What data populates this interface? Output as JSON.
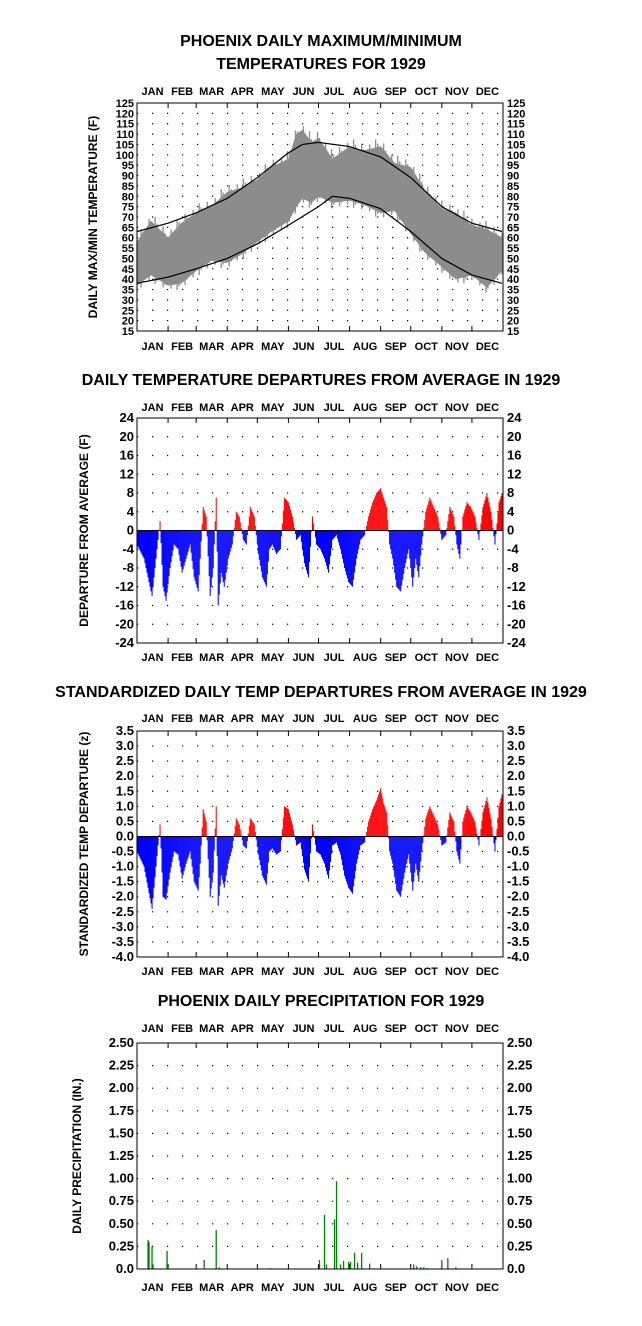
{
  "chart_data": [
    {
      "type": "area",
      "title": "PHOENIX DAILY MAXIMUM/MINIMUM",
      "subtitle": "TEMPERATURES FOR 1929",
      "xlabel": "",
      "ylabel": "DAILY MAX/MIN TEMPERATURE (F)",
      "ylim": [
        15,
        125
      ],
      "yticks": [
        "15",
        "20",
        "25",
        "30",
        "35",
        "40",
        "45",
        "50",
        "55",
        "60",
        "65",
        "70",
        "75",
        "80",
        "85",
        "90",
        "95",
        "100",
        "105",
        "110",
        "115",
        "120",
        "125"
      ],
      "months": [
        "JAN",
        "FEB",
        "MAR",
        "APR",
        "MAY",
        "JUN",
        "JUL",
        "AUG",
        "SEP",
        "OCT",
        "NOV",
        "DEC"
      ],
      "grid": true,
      "colors": {
        "band": "#8c8c8c",
        "normals": "#000000"
      },
      "series": [
        {
          "kind": "band",
          "x": [
            1,
            15,
            32,
            45,
            60,
            75,
            91,
            105,
            121,
            135,
            152,
            160,
            166,
            175,
            182,
            196,
            213,
            227,
            244,
            258,
            274,
            288,
            305,
            319,
            335,
            350,
            365
          ],
          "low": [
            37,
            42,
            37,
            38,
            44,
            49,
            48,
            52,
            58,
            63,
            68,
            75,
            79,
            77,
            80,
            77,
            78,
            76,
            72,
            73,
            62,
            53,
            46,
            40,
            42,
            36,
            44
          ],
          "high": [
            58,
            68,
            60,
            67,
            72,
            75,
            82,
            84,
            88,
            94,
            98,
            110,
            112,
            106,
            108,
            98,
            104,
            102,
            104,
            96,
            94,
            83,
            74,
            72,
            66,
            64,
            60
          ]
        },
        {
          "kind": "line",
          "x": [
            1,
            32,
            60,
            91,
            121,
            152,
            166,
            182,
            213,
            244,
            274,
            305,
            335,
            365
          ],
          "values": [
            63,
            67,
            72,
            79,
            89,
            101,
            105,
            106,
            104,
            99,
            89,
            75,
            67,
            63
          ]
        },
        {
          "kind": "line",
          "x": [
            1,
            32,
            60,
            91,
            121,
            152,
            182,
            196,
            213,
            244,
            274,
            305,
            335,
            365
          ],
          "values": [
            38,
            41,
            45,
            50,
            57,
            66,
            75,
            80,
            79,
            74,
            63,
            50,
            42,
            38
          ]
        }
      ]
    },
    {
      "type": "bar",
      "title": "DAILY TEMPERATURE DEPARTURES FROM AVERAGE IN 1929",
      "xlabel": "",
      "ylabel": "DEPARTURE FROM AVERAGE (F)",
      "ylim": [
        -24,
        24
      ],
      "yticks": [
        "-24",
        "-20",
        "-16",
        "-12",
        "-8",
        "-4",
        "0",
        "4",
        "8",
        "12",
        "16",
        "20",
        "24"
      ],
      "months": [
        "JAN",
        "FEB",
        "MAR",
        "APR",
        "MAY",
        "JUN",
        "JUL",
        "AUG",
        "SEP",
        "OCT",
        "NOV",
        "DEC"
      ],
      "grid": true,
      "colors": {
        "positive": "#ff0000",
        "negative": "#0000ff"
      },
      "x": [
        1,
        8,
        12,
        16,
        20,
        24,
        27,
        30,
        34,
        38,
        42,
        46,
        50,
        54,
        58,
        62,
        64,
        67,
        70,
        74,
        77,
        80,
        82,
        85,
        88,
        92,
        96,
        100,
        103,
        107,
        110,
        114,
        118,
        122,
        126,
        130,
        133,
        136,
        140,
        144,
        148,
        152,
        156,
        160,
        164,
        168,
        172,
        176,
        180,
        184,
        188,
        192,
        196,
        200,
        204,
        208,
        212,
        216,
        220,
        224,
        228,
        232,
        236,
        240,
        244,
        247,
        250,
        253,
        256,
        260,
        264,
        268,
        272,
        276,
        279,
        282,
        285,
        289,
        293,
        297,
        301,
        305,
        309,
        313,
        317,
        320,
        323,
        326,
        330,
        334,
        338,
        342,
        346,
        350,
        354,
        358,
        362,
        365
      ],
      "values": [
        -3,
        -6,
        -10,
        -14,
        -6,
        2,
        -12,
        -15,
        -8,
        -3,
        -4,
        -9,
        -6,
        -3,
        -10,
        -13,
        -6,
        5,
        3,
        -14,
        -8,
        7,
        -16,
        -9,
        -12,
        -6,
        -3,
        4,
        3,
        -2,
        -3,
        5,
        3,
        -5,
        -10,
        -12,
        -4,
        -3,
        -5,
        -4,
        7,
        6,
        3,
        -2,
        -1,
        -7,
        -10,
        3,
        -3,
        -4,
        -6,
        -9,
        -2,
        -1,
        -4,
        -8,
        -11,
        -12,
        -6,
        -2,
        -1,
        3,
        6,
        8,
        9,
        7,
        5,
        -3,
        -6,
        -12,
        -13,
        -8,
        -4,
        -12,
        -6,
        -10,
        -3,
        4,
        7,
        5,
        3,
        -2,
        -1,
        5,
        3,
        -3,
        -6,
        3,
        6,
        5,
        3,
        -2,
        5,
        8,
        4,
        -3,
        6,
        8
      ]
    },
    {
      "type": "bar",
      "title": "STANDARDIZED DAILY TEMP DEPARTURES FROM AVERAGE IN 1929",
      "xlabel": "",
      "ylabel": "STANDARDIZED TEMP DEPARTURE (z)",
      "ylim": [
        -4.0,
        3.5
      ],
      "yticks": [
        "-4.0",
        "-3.5",
        "-3.0",
        "-2.5",
        "-2.0",
        "-1.5",
        "-1.0",
        "-0.5",
        "0.0",
        "0.5",
        "1.0",
        "1.5",
        "2.0",
        "2.5",
        "3.0",
        "3.5"
      ],
      "months": [
        "JAN",
        "FEB",
        "MAR",
        "APR",
        "MAY",
        "JUN",
        "JUL",
        "AUG",
        "SEP",
        "OCT",
        "NOV",
        "DEC"
      ],
      "grid": true,
      "colors": {
        "positive": "#ff0000",
        "negative": "#0000ff"
      },
      "x": [
        1,
        8,
        12,
        16,
        20,
        24,
        27,
        30,
        34,
        38,
        42,
        46,
        50,
        54,
        58,
        62,
        64,
        67,
        70,
        74,
        77,
        80,
        82,
        85,
        88,
        92,
        96,
        100,
        103,
        107,
        110,
        114,
        118,
        122,
        126,
        130,
        133,
        136,
        140,
        144,
        148,
        152,
        156,
        160,
        164,
        168,
        172,
        176,
        180,
        184,
        188,
        192,
        196,
        200,
        204,
        208,
        212,
        216,
        220,
        224,
        228,
        232,
        236,
        240,
        244,
        247,
        250,
        253,
        256,
        260,
        264,
        268,
        272,
        276,
        279,
        282,
        285,
        289,
        293,
        297,
        301,
        305,
        309,
        313,
        317,
        320,
        323,
        326,
        330,
        334,
        338,
        342,
        346,
        350,
        354,
        358,
        362,
        365
      ],
      "values": [
        -0.5,
        -1.0,
        -1.7,
        -2.4,
        -1.0,
        0.4,
        -2.0,
        -2.1,
        -1.2,
        -0.5,
        -0.6,
        -1.4,
        -0.9,
        -0.5,
        -1.5,
        -1.8,
        -0.9,
        0.9,
        0.5,
        -2.0,
        -1.2,
        1.0,
        -2.3,
        -1.3,
        -1.7,
        -0.9,
        -0.4,
        0.6,
        0.4,
        -0.3,
        -0.4,
        0.6,
        0.4,
        -0.6,
        -1.3,
        -1.6,
        -0.5,
        -0.4,
        -0.6,
        -0.5,
        1.0,
        0.9,
        0.4,
        -0.3,
        -0.2,
        -1.1,
        -1.5,
        0.4,
        -0.5,
        -0.6,
        -0.9,
        -1.4,
        -0.3,
        -0.2,
        -0.6,
        -1.3,
        -1.7,
        -1.9,
        -0.9,
        -0.3,
        -0.2,
        0.5,
        0.9,
        1.2,
        1.6,
        1.1,
        0.8,
        -0.5,
        -0.9,
        -1.8,
        -2.0,
        -1.2,
        -0.6,
        -1.8,
        -0.9,
        -1.5,
        -0.5,
        0.6,
        1.0,
        0.7,
        0.4,
        -0.3,
        -0.2,
        0.8,
        0.5,
        -0.5,
        -0.9,
        0.5,
        1.0,
        0.8,
        0.5,
        -0.3,
        0.8,
        1.3,
        0.6,
        -0.5,
        1.0,
        1.4
      ]
    },
    {
      "type": "bar",
      "title": "PHOENIX DAILY PRECIPITATION FOR 1929",
      "xlabel": "",
      "ylabel": "DAILY PRECIPITATION (IN.)",
      "ylim": [
        0,
        2.5
      ],
      "yticks": [
        "0.0",
        "0.25",
        "0.50",
        "0.75",
        "1.00",
        "1.25",
        "1.50",
        "1.75",
        "2.00",
        "2.25",
        "2.50"
      ],
      "months": [
        "JAN",
        "FEB",
        "MAR",
        "APR",
        "MAY",
        "JUN",
        "JUL",
        "AUG",
        "SEP",
        "OCT",
        "NOV",
        "DEC"
      ],
      "grid": true,
      "colors": {
        "bar": "#008000"
      },
      "x": [
        12,
        13,
        16,
        17,
        31,
        32,
        68,
        80,
        83,
        134,
        183,
        188,
        190,
        198,
        200,
        204,
        207,
        212,
        214,
        218,
        221,
        225,
        233,
        277,
        280,
        284,
        287,
        290,
        305,
        311,
        319
      ],
      "values": [
        0.32,
        0.3,
        0.25,
        0.05,
        0.2,
        0.05,
        0.1,
        0.43,
        0.02,
        0.01,
        0.1,
        0.6,
        0.05,
        0.55,
        0.97,
        0.05,
        0.09,
        0.08,
        0.08,
        0.18,
        0.07,
        0.18,
        0.06,
        0.05,
        0.03,
        0.02,
        0.02,
        0.01,
        0.1,
        0.12,
        0.02
      ]
    }
  ]
}
